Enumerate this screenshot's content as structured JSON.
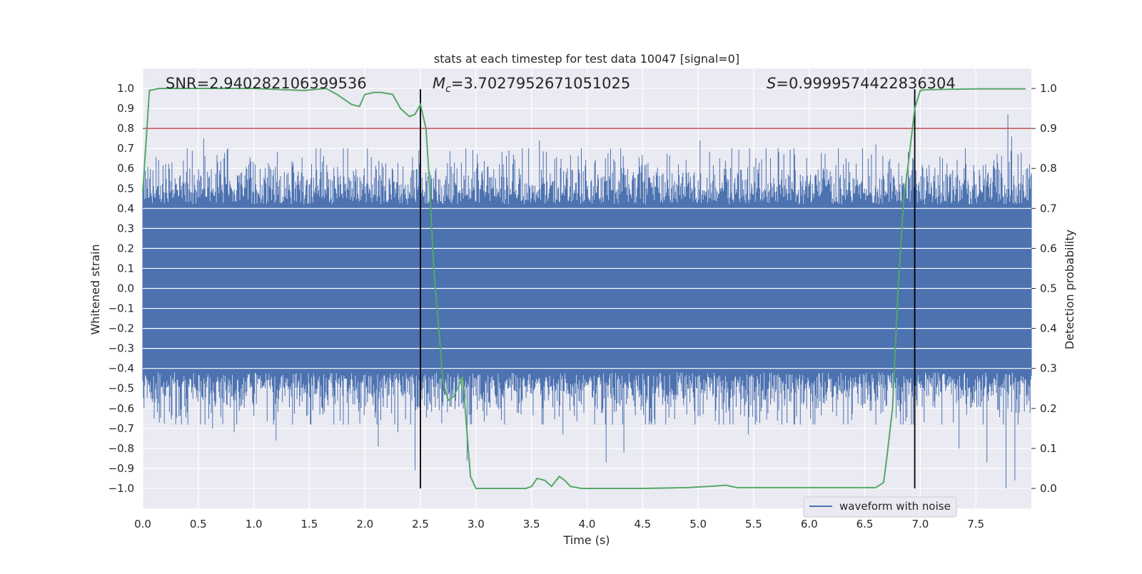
{
  "chart_data": {
    "type": "line",
    "title": "stats at each timestep for test data 10047 [signal=0]",
    "xlabel": "Time (s)",
    "ylabel": "Whitened strain",
    "ylabel_right": "Detection probability",
    "xlim": [
      0.0,
      8.0
    ],
    "ylim": [
      -1.1,
      1.1
    ],
    "ylim_right": [
      -0.05,
      1.05
    ],
    "x_ticks": [
      0.0,
      0.5,
      1.0,
      1.5,
      2.0,
      2.5,
      3.0,
      3.5,
      4.0,
      4.5,
      5.0,
      5.5,
      6.0,
      6.5,
      7.0,
      7.5
    ],
    "x_tick_labels": [
      "0.0",
      "0.5",
      "1.0",
      "1.5",
      "2.0",
      "2.5",
      "3.0",
      "3.5",
      "4.0",
      "4.5",
      "5.0",
      "5.5",
      "6.0",
      "6.5",
      "7.0",
      "7.5"
    ],
    "y_ticks": [
      1.0,
      0.9,
      0.8,
      0.7,
      0.6,
      0.5,
      0.4,
      0.3,
      0.2,
      0.1,
      0.0,
      -0.1,
      -0.2,
      -0.3,
      -0.4,
      -0.5,
      -0.6,
      -0.7,
      -0.8,
      -0.9,
      -1.0
    ],
    "y_tick_labels": [
      "1.0",
      "0.9",
      "0.8",
      "0.7",
      "0.6",
      "0.5",
      "0.4",
      "0.3",
      "0.2",
      "0.1",
      "0.0",
      "-0.1",
      "-0.2",
      "-0.3",
      "-0.4",
      "-0.5",
      "-0.6",
      "-0.7",
      "-0.8",
      "-0.9",
      "-1.0"
    ],
    "y_right_ticks": [
      1.0,
      0.9,
      0.8,
      0.7,
      0.6,
      0.5,
      0.4,
      0.3,
      0.2,
      0.1,
      0.0
    ],
    "y_right_tick_labels": [
      "1.0",
      "0.9",
      "0.8",
      "0.7",
      "0.6",
      "0.5",
      "0.4",
      "0.3",
      "0.2",
      "0.1",
      "0.0"
    ],
    "grid": true,
    "legend": {
      "position": "bottom-right",
      "entries": [
        "waveform with noise"
      ]
    },
    "annotations": {
      "snr": {
        "prefix": "SNR=",
        "value": "2.940282106399536"
      },
      "mc": {
        "symbol": "M",
        "subscript": "c",
        "prefix": "=",
        "value": "3.7027952671051025"
      },
      "s": {
        "symbol": "S",
        "prefix": "=",
        "value": "0.9999574422836304"
      }
    },
    "waveform": {
      "name": "waveform with noise",
      "color": "#4c72b0",
      "x_range": [
        0.0,
        8.0
      ],
      "dense_band": [
        -0.42,
        0.42
      ],
      "typical_peak": 0.55,
      "extremes": [
        {
          "x": 0.1,
          "y": -0.65
        },
        {
          "x": 0.15,
          "y": -0.67
        },
        {
          "x": 0.26,
          "y": 0.63
        },
        {
          "x": 0.55,
          "y": 0.75
        },
        {
          "x": 0.56,
          "y": -0.68
        },
        {
          "x": 0.63,
          "y": -0.7
        },
        {
          "x": 0.82,
          "y": -0.72
        },
        {
          "x": 1.2,
          "y": -0.76
        },
        {
          "x": 1.35,
          "y": -0.68
        },
        {
          "x": 2.12,
          "y": -0.79
        },
        {
          "x": 2.3,
          "y": -0.72
        },
        {
          "x": 2.45,
          "y": -0.91
        },
        {
          "x": 2.92,
          "y": -0.86
        },
        {
          "x": 3.57,
          "y": 0.74
        },
        {
          "x": 3.78,
          "y": -0.73
        },
        {
          "x": 4.17,
          "y": -0.87
        },
        {
          "x": 4.33,
          "y": -0.82
        },
        {
          "x": 5.02,
          "y": 0.74
        },
        {
          "x": 5.45,
          "y": -0.73
        },
        {
          "x": 6.6,
          "y": 0.72
        },
        {
          "x": 7.35,
          "y": -0.8
        },
        {
          "x": 7.6,
          "y": -0.87
        },
        {
          "x": 7.77,
          "y": -1.0
        },
        {
          "x": 7.79,
          "y": 0.87
        },
        {
          "x": 7.82,
          "y": 0.76
        },
        {
          "x": 7.85,
          "y": -0.96
        },
        {
          "x": 7.88,
          "y": 0.67
        }
      ]
    },
    "detection_probability": {
      "color": "#55a868",
      "x": [
        0.0,
        0.06,
        0.15,
        0.5,
        1.0,
        1.45,
        1.65,
        1.75,
        1.88,
        1.95,
        2.0,
        2.08,
        2.15,
        2.25,
        2.32,
        2.4,
        2.45,
        2.5,
        2.55,
        2.58,
        2.62,
        2.68,
        2.7,
        2.75,
        2.8,
        2.85,
        2.88,
        2.95,
        3.0,
        3.2,
        3.45,
        3.5,
        3.55,
        3.62,
        3.68,
        3.75,
        3.8,
        3.85,
        3.95,
        4.5,
        4.9,
        5.1,
        5.25,
        5.35,
        6.4,
        6.6,
        6.67,
        6.7,
        6.75,
        6.8,
        6.85,
        6.9,
        6.95,
        7.0,
        7.05,
        7.5,
        7.95
      ],
      "y": [
        0.74,
        0.995,
        1.0,
        1.0,
        1.0,
        0.995,
        1.0,
        0.985,
        0.96,
        0.955,
        0.985,
        0.99,
        0.99,
        0.985,
        0.95,
        0.93,
        0.935,
        0.96,
        0.9,
        0.77,
        0.55,
        0.35,
        0.27,
        0.22,
        0.23,
        0.26,
        0.28,
        0.03,
        0.0,
        0.0,
        0.0,
        0.005,
        0.025,
        0.02,
        0.005,
        0.03,
        0.02,
        0.005,
        0.0,
        0.0,
        0.002,
        0.005,
        0.008,
        0.002,
        0.002,
        0.002,
        0.015,
        0.08,
        0.2,
        0.5,
        0.72,
        0.83,
        0.95,
        0.995,
        0.997,
        0.999,
        0.999
      ],
      "threshold": {
        "value": 0.9,
        "color": "#c44e52"
      }
    },
    "vertical_markers": {
      "x": [
        2.5,
        6.95
      ],
      "y_range": [
        -1.0,
        0.998
      ],
      "color": "#000000"
    }
  }
}
